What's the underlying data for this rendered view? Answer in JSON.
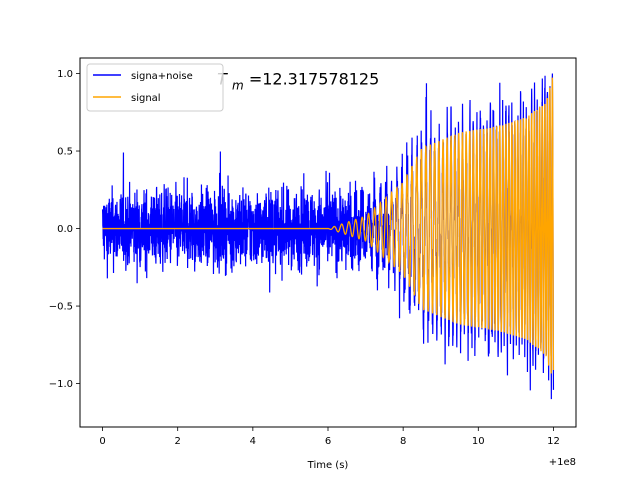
{
  "chart_data": {
    "type": "line",
    "title": "",
    "xlabel": "Time (s)",
    "ylabel": "",
    "x_offset_label": "+1e8",
    "xlim": [
      -0.6,
      12.6
    ],
    "ylim": [
      -1.28,
      1.1
    ],
    "x_ticks": [
      0,
      2,
      4,
      6,
      8,
      10,
      12
    ],
    "x_tick_labels": [
      "0",
      "2",
      "4",
      "6",
      "8",
      "10",
      "12"
    ],
    "y_ticks": [
      -1.0,
      -0.5,
      0.0,
      0.5,
      1.0
    ],
    "y_tick_labels": [
      "−1.0",
      "−0.5",
      "0.0",
      "0.5",
      "1.0"
    ],
    "annotation": {
      "base": "T",
      "subscript": "m",
      "value_text": "=12.317578125",
      "x": 3.05,
      "y": 0.93
    },
    "legend": {
      "location": "upper-left"
    },
    "series": [
      {
        "name": "signa+noise",
        "color": "#0000ff",
        "description": "noisy chirp",
        "x_range": [
          0,
          12.0
        ],
        "noise_amplitude": 0.27,
        "noise_spikes_max": 0.55,
        "envelope_points": [
          [
            0,
            0
          ],
          [
            6,
            0.0
          ],
          [
            7.0,
            0.08
          ],
          [
            8.0,
            0.3
          ],
          [
            8.5,
            0.52
          ],
          [
            9.5,
            0.62
          ],
          [
            10.5,
            0.66
          ],
          [
            11.3,
            0.72
          ],
          [
            11.8,
            0.82
          ],
          [
            12.0,
            1.0
          ]
        ],
        "min_value": -1.17,
        "max_value": 1.0
      },
      {
        "name": "signal",
        "color": "#ffa500",
        "description": "clean chirp",
        "x_range": [
          0,
          12.0
        ],
        "envelope_points": [
          [
            0,
            0
          ],
          [
            6,
            0.0
          ],
          [
            7.0,
            0.08
          ],
          [
            8.0,
            0.3
          ],
          [
            8.5,
            0.52
          ],
          [
            9.5,
            0.62
          ],
          [
            10.5,
            0.66
          ],
          [
            11.3,
            0.72
          ],
          [
            11.8,
            0.82
          ],
          [
            12.0,
            1.0
          ]
        ],
        "min_value": -1.0,
        "max_value": 1.0
      }
    ]
  }
}
